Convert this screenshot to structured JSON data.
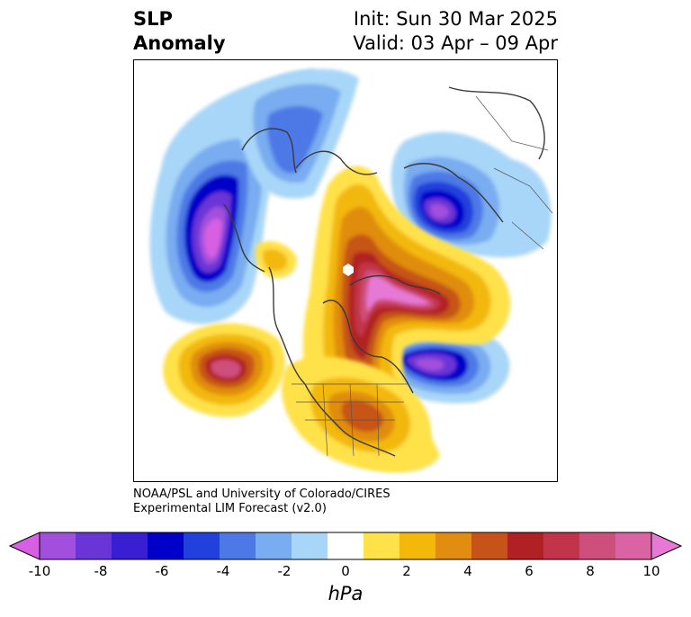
{
  "title": {
    "left_line1": "SLP",
    "left_line2": "Anomaly",
    "right_line1": "Init: Sun 30 Mar 2025",
    "right_line2": "Valid: 03 Apr – 09 Apr"
  },
  "credit": {
    "line1": "NOAA/PSL and University of Colorado/CIRES",
    "line2": "Experimental LIM Forecast (v2.0)"
  },
  "colorbar": {
    "unit": "hPa",
    "ticks": [
      "-10",
      "-8",
      "-6",
      "-4",
      "-2",
      "0",
      "2",
      "4",
      "6",
      "8",
      "10"
    ],
    "colors": [
      "#d65fe2",
      "#a14fdc",
      "#6a35d6",
      "#3a1ed2",
      "#0000c8",
      "#2240dc",
      "#4d79e6",
      "#79acf0",
      "#a8d6f8",
      "#ffffff",
      "#ffe14a",
      "#f3b80a",
      "#e08d10",
      "#c65418",
      "#b12124",
      "#c2344a",
      "#cf4f7c",
      "#da63a4",
      "#e679d6"
    ]
  },
  "map": {
    "projection": "north-polar-stereographic",
    "variable": "sea level pressure anomaly",
    "features": [
      {
        "name": "north-pacific-low",
        "sign": "negative",
        "peak_hpa": -9
      },
      {
        "name": "scandinavia-eastern-europe-low",
        "sign": "negative",
        "peak_hpa": -8
      },
      {
        "name": "north-atlantic-low",
        "sign": "negative",
        "peak_hpa": -8
      },
      {
        "name": "arctic-canada-greenland-high",
        "sign": "positive",
        "peak_hpa": 10
      },
      {
        "name": "east-pacific-high",
        "sign": "positive",
        "peak_hpa": 8
      },
      {
        "name": "eastern-north-america-high",
        "sign": "positive",
        "peak_hpa": 6
      }
    ]
  }
}
